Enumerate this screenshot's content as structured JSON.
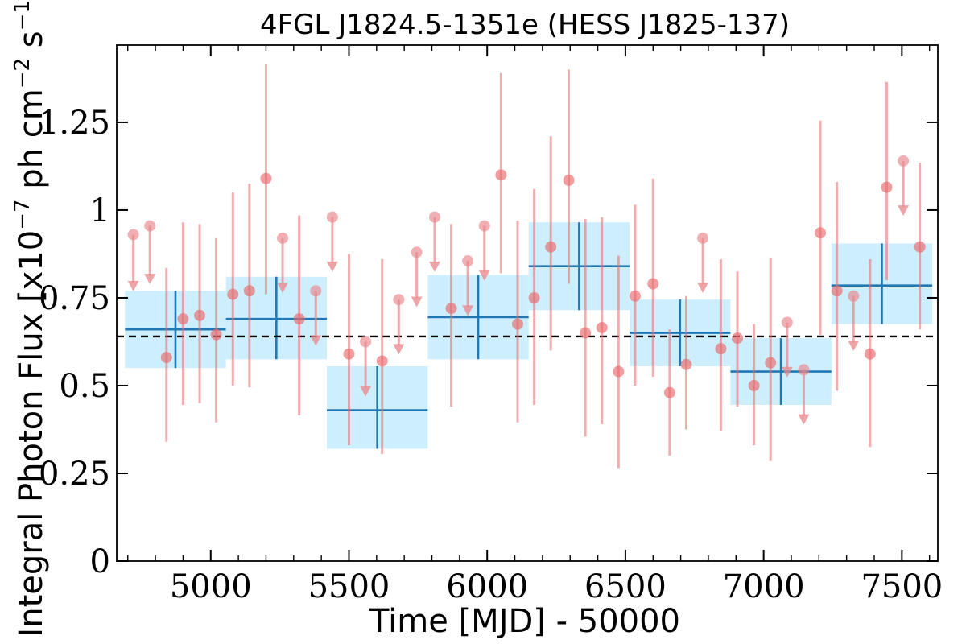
{
  "chart_data": {
    "type": "scatter",
    "title": "4FGL J1824.5-1351e (HESS J1825-137)",
    "xlabel": "Time [MJD] - 50000",
    "ylabel_main": "Integral Photon Flux [x10",
    "ylabel_exp1": "−7",
    "ylabel_mid": " ph cm",
    "ylabel_exp2": "−2",
    "ylabel_mid2": " s",
    "ylabel_exp3": "−1",
    "ylabel_end": "]",
    "xlim": [
      4660,
      7630
    ],
    "ylim": [
      0,
      1.47
    ],
    "x_ticks": [
      {
        "value": 5000,
        "label": "5000"
      },
      {
        "value": 5500,
        "label": "5500"
      },
      {
        "value": 6000,
        "label": "6000"
      },
      {
        "value": 6500,
        "label": "6500"
      },
      {
        "value": 7000,
        "label": "7000"
      },
      {
        "value": 7500,
        "label": "7500"
      }
    ],
    "y_ticks": [
      {
        "value": 0,
        "label": "0"
      },
      {
        "value": 0.25,
        "label": "0.25"
      },
      {
        "value": 0.5,
        "label": "0.5"
      },
      {
        "value": 0.75,
        "label": "0.75"
      },
      {
        "value": 1.0,
        "label": "1"
      },
      {
        "value": 1.25,
        "label": "1.25"
      }
    ],
    "mean_flux": 0.64,
    "colors": {
      "points": "#e8696b",
      "upper_limits": "#e8868a",
      "bin_fill": "#cdeefc",
      "bin_line": "#2178b4",
      "mean_line": "#000000"
    },
    "binned": [
      {
        "x0": 4690,
        "x1": 5055,
        "y": 0.66,
        "ylo": 0.55,
        "yhi": 0.77
      },
      {
        "x0": 5055,
        "x1": 5420,
        "y": 0.69,
        "ylo": 0.575,
        "yhi": 0.81
      },
      {
        "x0": 5420,
        "x1": 5785,
        "y": 0.43,
        "ylo": 0.32,
        "yhi": 0.555
      },
      {
        "x0": 5785,
        "x1": 6150,
        "y": 0.695,
        "ylo": 0.575,
        "yhi": 0.815
      },
      {
        "x0": 6150,
        "x1": 6515,
        "y": 0.84,
        "ylo": 0.715,
        "yhi": 0.965
      },
      {
        "x0": 6515,
        "x1": 6880,
        "y": 0.65,
        "ylo": 0.555,
        "yhi": 0.745
      },
      {
        "x0": 6880,
        "x1": 7245,
        "y": 0.54,
        "ylo": 0.445,
        "yhi": 0.635
      },
      {
        "x0": 7245,
        "x1": 7610,
        "y": 0.785,
        "ylo": 0.675,
        "yhi": 0.905
      }
    ],
    "points": [
      {
        "x": 4840,
        "y": 0.58,
        "ylo": 0.34,
        "yhi": 0.835
      },
      {
        "x": 4900,
        "y": 0.69,
        "ylo": 0.445,
        "yhi": 0.965
      },
      {
        "x": 4960,
        "y": 0.7,
        "ylo": 0.45,
        "yhi": 0.96
      },
      {
        "x": 5020,
        "y": 0.645,
        "ylo": 0.395,
        "yhi": 0.92
      },
      {
        "x": 5080,
        "y": 0.76,
        "ylo": 0.5,
        "yhi": 1.05
      },
      {
        "x": 5140,
        "y": 0.77,
        "ylo": 0.495,
        "yhi": 1.075
      },
      {
        "x": 5200,
        "y": 1.09,
        "ylo": 0.76,
        "yhi": 1.415
      },
      {
        "x": 5320,
        "y": 0.69,
        "ylo": 0.415,
        "yhi": 0.985
      },
      {
        "x": 5500,
        "y": 0.59,
        "ylo": 0.33,
        "yhi": 0.875
      },
      {
        "x": 5620,
        "y": 0.57,
        "ylo": 0.305,
        "yhi": 0.86
      },
      {
        "x": 5870,
        "y": 0.72,
        "ylo": 0.44,
        "yhi": 0.96
      },
      {
        "x": 6050,
        "y": 1.1,
        "ylo": 0.82,
        "yhi": 1.39
      },
      {
        "x": 6110,
        "y": 0.675,
        "ylo": 0.395,
        "yhi": 0.97
      },
      {
        "x": 6170,
        "y": 0.75,
        "ylo": 0.445,
        "yhi": 1.06
      },
      {
        "x": 6230,
        "y": 0.895,
        "ylo": 0.6,
        "yhi": 1.21
      },
      {
        "x": 6295,
        "y": 1.085,
        "ylo": 0.79,
        "yhi": 1.4
      },
      {
        "x": 6355,
        "y": 0.65,
        "ylo": 0.355,
        "yhi": 0.975
      },
      {
        "x": 6415,
        "y": 0.665,
        "ylo": 0.39,
        "yhi": 0.98
      },
      {
        "x": 6475,
        "y": 0.54,
        "ylo": 0.265,
        "yhi": 0.87
      },
      {
        "x": 6535,
        "y": 0.755,
        "ylo": 0.5,
        "yhi": 1.015
      },
      {
        "x": 6600,
        "y": 0.79,
        "ylo": 0.525,
        "yhi": 1.09
      },
      {
        "x": 6660,
        "y": 0.48,
        "ylo": 0.3,
        "yhi": 0.66
      },
      {
        "x": 6720,
        "y": 0.56,
        "ylo": 0.375,
        "yhi": 0.755
      },
      {
        "x": 6845,
        "y": 0.605,
        "ylo": 0.37,
        "yhi": 0.86
      },
      {
        "x": 6905,
        "y": 0.635,
        "ylo": 0.44,
        "yhi": 0.825
      },
      {
        "x": 6965,
        "y": 0.5,
        "ylo": 0.33,
        "yhi": 0.675
      },
      {
        "x": 7025,
        "y": 0.565,
        "ylo": 0.285,
        "yhi": 0.865
      },
      {
        "x": 7205,
        "y": 0.935,
        "ylo": 0.645,
        "yhi": 1.255
      },
      {
        "x": 7265,
        "y": 0.77,
        "ylo": 0.485,
        "yhi": 1.08
      },
      {
        "x": 7385,
        "y": 0.59,
        "ylo": 0.325,
        "yhi": 0.86
      },
      {
        "x": 7445,
        "y": 1.065,
        "ylo": 0.8,
        "yhi": 1.365
      },
      {
        "x": 7565,
        "y": 0.895,
        "ylo": 0.66,
        "yhi": 1.135
      }
    ],
    "upper_limits": [
      {
        "x": 4720,
        "y": 0.93,
        "y_arrow": 0.78
      },
      {
        "x": 4780,
        "y": 0.955,
        "y_arrow": 0.8
      },
      {
        "x": 5260,
        "y": 0.92,
        "y_arrow": 0.775
      },
      {
        "x": 5380,
        "y": 0.77,
        "y_arrow": 0.625
      },
      {
        "x": 5440,
        "y": 0.98,
        "y_arrow": 0.835
      },
      {
        "x": 5560,
        "y": 0.625,
        "y_arrow": 0.48
      },
      {
        "x": 5680,
        "y": 0.745,
        "y_arrow": 0.6
      },
      {
        "x": 5745,
        "y": 0.88,
        "y_arrow": 0.735
      },
      {
        "x": 5810,
        "y": 0.98,
        "y_arrow": 0.835
      },
      {
        "x": 5930,
        "y": 0.855,
        "y_arrow": 0.71
      },
      {
        "x": 5990,
        "y": 0.955,
        "y_arrow": 0.81
      },
      {
        "x": 6780,
        "y": 0.92,
        "y_arrow": 0.775
      },
      {
        "x": 7085,
        "y": 0.68,
        "y_arrow": 0.535
      },
      {
        "x": 7145,
        "y": 0.545,
        "y_arrow": 0.4
      },
      {
        "x": 7325,
        "y": 0.755,
        "y_arrow": 0.61
      },
      {
        "x": 7505,
        "y": 1.14,
        "y_arrow": 0.995
      }
    ]
  }
}
